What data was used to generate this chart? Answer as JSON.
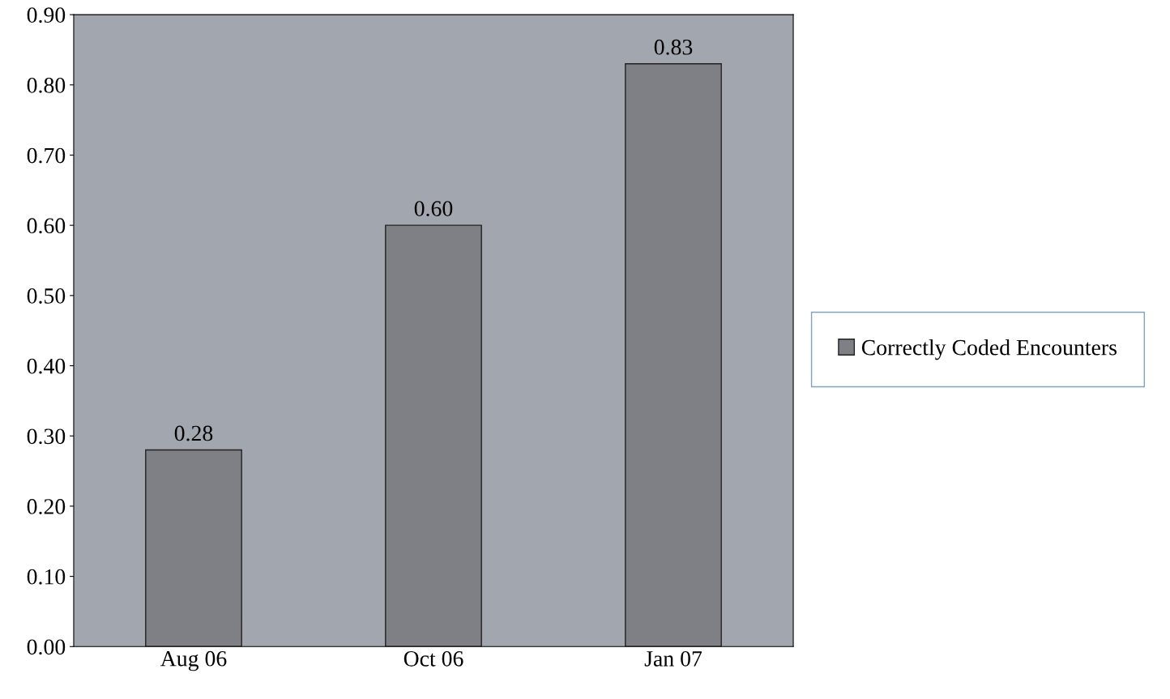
{
  "chart_data": {
    "type": "bar",
    "categories": [
      "Aug 06",
      "Oct 06",
      "Jan 07"
    ],
    "series": [
      {
        "name": "Correctly Coded Encounters",
        "color": "#7e8086",
        "values": [
          0.28,
          0.6,
          0.83
        ]
      }
    ],
    "ylim": [
      0,
      0.9
    ],
    "yticks": [
      {
        "value": 0,
        "label": "0.00"
      },
      {
        "value": 0.1,
        "label": "0.10"
      },
      {
        "value": 0.2,
        "label": "0.20"
      },
      {
        "value": 0.3,
        "label": "0.30"
      },
      {
        "value": 0.4,
        "label": "0.40"
      },
      {
        "value": 0.5,
        "label": "0.50"
      },
      {
        "value": 0.6,
        "label": "0.60"
      },
      {
        "value": 0.7,
        "label": "0.70"
      },
      {
        "value": 0.8,
        "label": "0.80"
      },
      {
        "value": 0.9,
        "label": "0.90"
      }
    ],
    "value_labels": [
      "0.28",
      "0.60",
      "0.83"
    ],
    "legend": "right",
    "grid": false
  }
}
